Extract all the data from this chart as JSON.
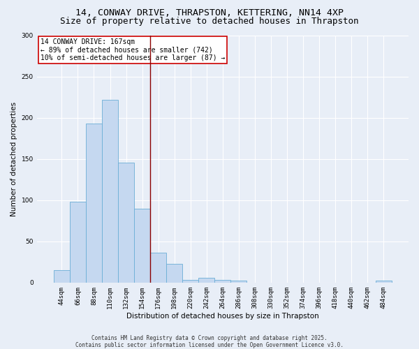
{
  "title_line1": "14, CONWAY DRIVE, THRAPSTON, KETTERING, NN14 4XP",
  "title_line2": "Size of property relative to detached houses in Thrapston",
  "xlabel": "Distribution of detached houses by size in Thrapston",
  "ylabel": "Number of detached properties",
  "footnote1": "Contains HM Land Registry data © Crown copyright and database right 2025.",
  "footnote2": "Contains public sector information licensed under the Open Government Licence v3.0.",
  "bar_labels": [
    "44sqm",
    "66sqm",
    "88sqm",
    "110sqm",
    "132sqm",
    "154sqm",
    "176sqm",
    "198sqm",
    "220sqm",
    "242sqm",
    "264sqm",
    "286sqm",
    "308sqm",
    "330sqm",
    "352sqm",
    "374sqm",
    "396sqm",
    "418sqm",
    "440sqm",
    "462sqm",
    "484sqm"
  ],
  "bar_values": [
    15,
    98,
    193,
    222,
    146,
    90,
    36,
    23,
    3,
    6,
    3,
    2,
    0,
    0,
    0,
    0,
    0,
    0,
    0,
    0,
    2
  ],
  "bar_color": "#c5d8f0",
  "bar_edge_color": "#6baed6",
  "vline_x_index": 5.5,
  "vline_color": "#8b0000",
  "annotation_text": "14 CONWAY DRIVE: 167sqm\n← 89% of detached houses are smaller (742)\n10% of semi-detached houses are larger (87) →",
  "annotation_box_color": "#ffffff",
  "annotation_box_edge": "#cc0000",
  "ylim": [
    0,
    300
  ],
  "yticks": [
    0,
    50,
    100,
    150,
    200,
    250,
    300
  ],
  "background_color": "#e8eef7",
  "plot_bg_color": "#e8eef7",
  "grid_color": "#ffffff",
  "title_fontsize": 9.5,
  "axis_label_fontsize": 7.5,
  "tick_fontsize": 6.5,
  "annotation_fontsize": 7,
  "footnote_fontsize": 5.5
}
